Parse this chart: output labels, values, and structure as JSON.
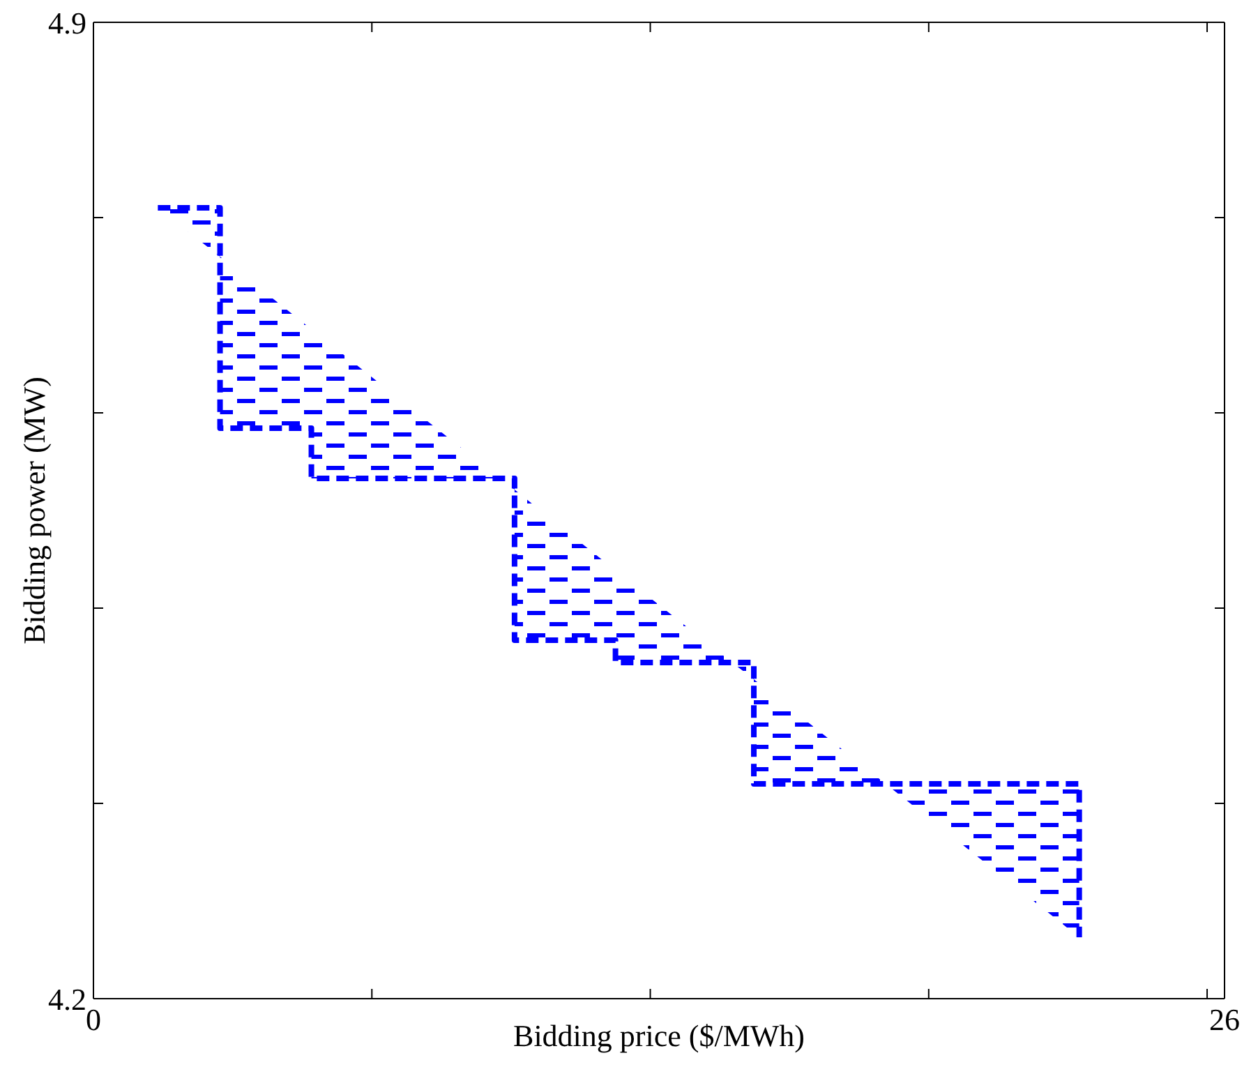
{
  "chart_data": {
    "type": "line",
    "xlabel": "Bidding price ($/MWh)",
    "ylabel": "Bidding power (MW)",
    "xlim": [
      0,
      26
    ],
    "ylim": [
      4.2,
      4.9
    ],
    "xticks": [
      0,
      {
        "value": 6.4,
        "label": null
      },
      {
        "value": 12.8,
        "label": null
      },
      {
        "value": 19.2,
        "label": null
      },
      {
        "value": 25.6,
        "label": null
      },
      26
    ],
    "yticks": [
      4.2,
      {
        "value": 4.34,
        "label": null
      },
      {
        "value": 4.48,
        "label": null
      },
      {
        "value": 4.62,
        "label": null
      },
      {
        "value": 4.76,
        "label": null
      },
      4.9
    ],
    "legend": false,
    "marker": "none",
    "line_style": "dashed",
    "series": [
      {
        "color": "#0000ff",
        "x": [
          1.48,
          2.91,
          2.91,
          5.01,
          5.01,
          9.34,
          9.68,
          9.68,
          12.0,
          12.0,
          14.68,
          15.18,
          15.18,
          18.21,
          22.66,
          22.66
        ],
        "values": [
          4.767,
          4.767,
          4.609,
          4.609,
          4.573,
          4.573,
          4.573,
          4.457,
          4.457,
          4.441,
          4.441,
          4.441,
          4.354,
          4.354,
          4.354,
          4.244
        ],
        "lower": [
          4.767,
          4.732,
          4.609,
          4.609,
          4.573,
          4.573,
          4.565,
          4.457,
          4.457,
          4.441,
          4.441,
          4.429,
          4.354,
          4.354,
          4.244,
          4.244
        ],
        "upper": [
          4.767,
          4.767,
          4.732,
          4.68,
          4.68,
          4.573,
          4.573,
          4.565,
          4.507,
          4.507,
          4.441,
          4.441,
          4.429,
          4.354,
          4.354,
          4.244
        ]
      }
    ]
  }
}
